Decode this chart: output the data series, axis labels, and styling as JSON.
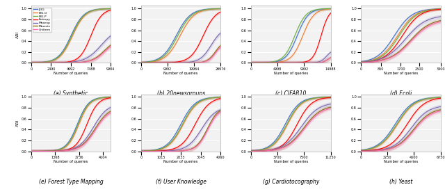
{
  "subplots": [
    {
      "label": "(a) Synthetic",
      "xticks": [
        0,
        2490,
        4992,
        7488,
        9984
      ],
      "xmax": 9984,
      "ylim": [
        0,
        1.05
      ]
    },
    {
      "label": "(b) 20newsgroups",
      "xticks": [
        0,
        9992,
        19964,
        29976
      ],
      "xmax": 29976,
      "ylim": [
        0,
        1.05
      ]
    },
    {
      "label": "(c) CIFAR10",
      "xticks": [
        0,
        4998,
        9992,
        14988
      ],
      "xmax": 14988,
      "ylim": [
        0,
        1.05
      ]
    },
    {
      "label": "(d) Ecoli",
      "xticks": [
        0,
        850,
        1700,
        2500,
        3400
      ],
      "xmax": 3400,
      "ylim": [
        0,
        1.05
      ]
    },
    {
      "label": "(e) Forest Type Mapping",
      "xticks": [
        0,
        1368,
        2736,
        4104
      ],
      "xmax": 4550,
      "ylim": [
        0,
        1.05
      ]
    },
    {
      "label": "(f) User Knowledge",
      "xticks": [
        0,
        1015,
        2033,
        3045,
        4060
      ],
      "xmax": 4060,
      "ylim": [
        0,
        1.05
      ]
    },
    {
      "label": "(g) Cardiotocography",
      "xticks": [
        0,
        3700,
        7500,
        11250
      ],
      "xmax": 11250,
      "ylim": [
        0,
        1.05
      ]
    },
    {
      "label": "(h) Yeast",
      "xticks": [
        0,
        2250,
        4500,
        6750
      ],
      "xmax": 6750,
      "ylim": [
        0,
        1.05
      ]
    }
  ],
  "methods": [
    "JEIG",
    "EIG-O",
    "EIG-P",
    "Entropy",
    "Maxexp",
    "Maxmin",
    "Uniform"
  ],
  "colors": [
    "#4472c4",
    "#ed7d31",
    "#70ad47",
    "#ff0000",
    "#7b68b0",
    "#8b6914",
    "#ff69b4"
  ],
  "yticks": [
    0.0,
    0.2,
    0.4,
    0.6,
    0.8,
    1.0
  ],
  "curve_params": [
    [
      [
        0.5,
        0.08,
        1.0
      ],
      [
        0.52,
        0.08,
        1.0
      ],
      [
        0.51,
        0.08,
        1.0
      ],
      [
        0.75,
        0.07,
        1.0
      ],
      [
        0.88,
        0.1,
        0.65
      ],
      [
        0.92,
        0.08,
        0.45
      ],
      [
        0.93,
        0.08,
        0.43
      ]
    ],
    [
      [
        0.44,
        0.09,
        1.0
      ],
      [
        0.49,
        0.09,
        1.0
      ],
      [
        0.46,
        0.09,
        1.0
      ],
      [
        0.78,
        0.08,
        1.0
      ],
      [
        0.88,
        0.07,
        0.65
      ],
      [
        0.93,
        0.05,
        0.4
      ],
      [
        0.94,
        0.05,
        0.38
      ]
    ],
    [
      [
        0.58,
        0.07,
        1.0
      ],
      [
        0.65,
        0.07,
        1.0
      ],
      [
        0.55,
        0.07,
        1.0
      ],
      [
        0.88,
        0.05,
        1.0
      ],
      [
        0.95,
        0.04,
        0.25
      ],
      [
        0.96,
        0.03,
        0.12
      ],
      [
        0.96,
        0.03,
        0.12
      ]
    ],
    [
      [
        0.42,
        0.11,
        1.0
      ],
      [
        0.46,
        0.11,
        1.0
      ],
      [
        0.48,
        0.11,
        1.0
      ],
      [
        0.52,
        0.11,
        1.0
      ],
      [
        0.56,
        0.13,
        0.88
      ],
      [
        0.62,
        0.13,
        0.82
      ],
      [
        0.63,
        0.13,
        0.8
      ]
    ],
    [
      [
        0.58,
        0.07,
        1.0
      ],
      [
        0.6,
        0.07,
        1.0
      ],
      [
        0.59,
        0.07,
        1.0
      ],
      [
        0.7,
        0.07,
        1.0
      ],
      [
        0.78,
        0.09,
        0.88
      ],
      [
        0.8,
        0.09,
        0.82
      ],
      [
        0.81,
        0.09,
        0.8
      ]
    ],
    [
      [
        0.5,
        0.09,
        1.0
      ],
      [
        0.53,
        0.09,
        1.0
      ],
      [
        0.52,
        0.09,
        1.0
      ],
      [
        0.68,
        0.09,
        1.0
      ],
      [
        0.76,
        0.09,
        0.82
      ],
      [
        0.83,
        0.07,
        0.82
      ],
      [
        0.84,
        0.07,
        0.8
      ]
    ],
    [
      [
        0.43,
        0.09,
        1.0
      ],
      [
        0.46,
        0.09,
        1.0
      ],
      [
        0.45,
        0.09,
        1.0
      ],
      [
        0.58,
        0.09,
        1.0
      ],
      [
        0.63,
        0.11,
        0.9
      ],
      [
        0.66,
        0.11,
        0.85
      ],
      [
        0.67,
        0.11,
        0.83
      ]
    ],
    [
      [
        0.43,
        0.11,
        1.0
      ],
      [
        0.46,
        0.11,
        1.0
      ],
      [
        0.45,
        0.11,
        1.0
      ],
      [
        0.58,
        0.11,
        1.0
      ],
      [
        0.63,
        0.11,
        0.85
      ],
      [
        0.66,
        0.11,
        0.8
      ],
      [
        0.67,
        0.11,
        0.78
      ]
    ]
  ],
  "noise_levels": [
    0.025,
    0.025,
    0.025,
    0.025,
    0.04,
    0.04,
    0.04
  ]
}
